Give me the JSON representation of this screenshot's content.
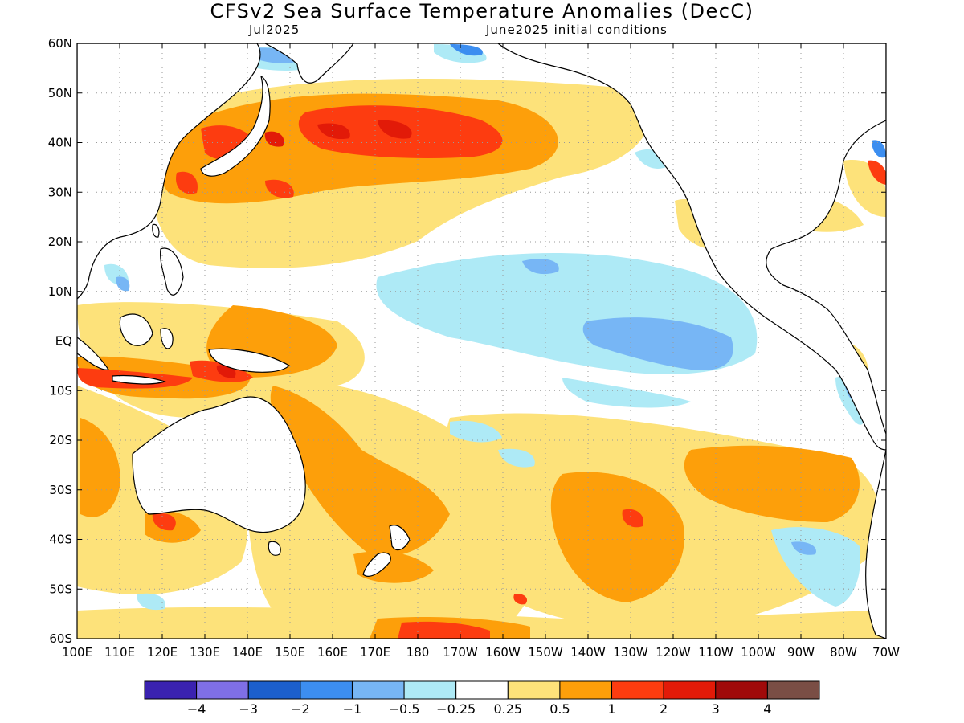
{
  "header": {
    "title": "CFSv2 Sea Surface Temperature Anomalies (DecC)",
    "valid_month": "Jul2025",
    "initial_conditions": "June2025 initial conditions"
  },
  "axes": {
    "lat_labels": [
      "60N",
      "50N",
      "40N",
      "30N",
      "20N",
      "10N",
      "EQ",
      "10S",
      "20S",
      "30S",
      "40S",
      "50S",
      "60S"
    ],
    "lon_labels": [
      "100E",
      "110E",
      "120E",
      "130E",
      "140E",
      "150E",
      "160E",
      "170E",
      "180",
      "170W",
      "160W",
      "150W",
      "140W",
      "130W",
      "120W",
      "110W",
      "100W",
      "90W",
      "80W",
      "70W"
    ]
  },
  "colorbar": {
    "colors": [
      "#3a22b0",
      "#7f6fe6",
      "#1c5fcc",
      "#3c8ef0",
      "#77b6f5",
      "#aeeaf6",
      "#ffffff",
      "#fde27a",
      "#fd9f0a",
      "#fd3c10",
      "#e21a08",
      "#a00a0a",
      "#7a4e45"
    ],
    "labels": [
      "−4",
      "−3",
      "−2",
      "−1",
      "−0.5",
      "−0.25",
      "0.25",
      "0.5",
      "1",
      "2",
      "3",
      "4"
    ]
  },
  "map_layers": {
    "ocean": "#ffffff",
    "coast": "#000000",
    "grid": "#999999"
  }
}
